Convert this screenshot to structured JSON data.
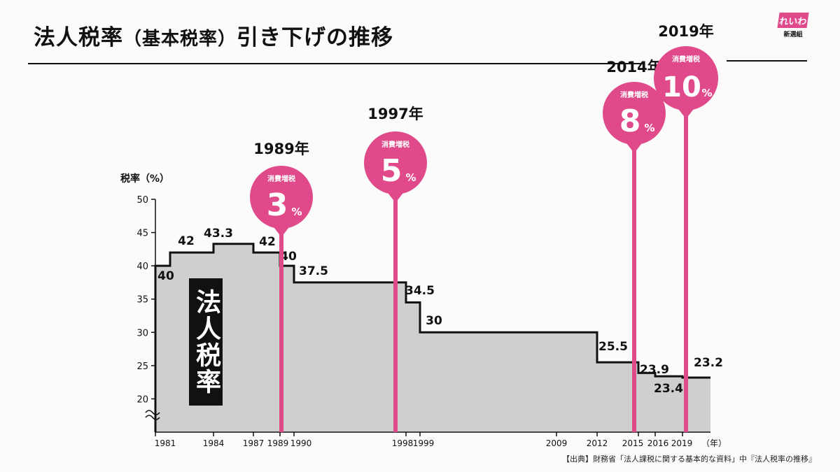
{
  "title": {
    "main": "法人税率",
    "paren": "（基本税率）",
    "tail": "引き下げの推移"
  },
  "logo": {
    "mark": "れいわ",
    "sub": "新選組"
  },
  "source_note": "【出典】財務省「法人課税に関する基本的な資料」中『法人税率の推移』",
  "chart_data": {
    "type": "area",
    "step": true,
    "title": "法人税率（基本税率）引き下げの推移",
    "ylabel": "税率（%）",
    "xlabel": "（年）",
    "ylim": [
      15,
      50
    ],
    "y_ticks": [
      "20",
      "25",
      "30",
      "35",
      "40",
      "45",
      "50"
    ],
    "axis_break": true,
    "x_tick_labels": [
      "1981",
      "1984",
      "1987",
      "1989",
      "1990",
      "1998",
      "1999",
      "2009",
      "2012",
      "2015",
      "2016",
      "2019"
    ],
    "label_0": "（年）",
    "area_label": "法人税",
    "area_label_2": "率",
    "fill_color": "#cfcfcf",
    "accent_color": "#e04a8b",
    "series": [
      {
        "name": "法人税率",
        "points": [
          {
            "x": 1981,
            "y": 40,
            "label": "40"
          },
          {
            "x": 1981.5,
            "y": 42,
            "label": "42"
          },
          {
            "x": 1984,
            "y": 43.3,
            "label": "43.3"
          },
          {
            "x": 1987,
            "y": 42,
            "label": "42"
          },
          {
            "x": 1989,
            "y": 40,
            "label": "40"
          },
          {
            "x": 1990,
            "y": 37.5,
            "label": "37.5"
          },
          {
            "x": 1998,
            "y": 34.5,
            "label": "34.5"
          },
          {
            "x": 1999,
            "y": 30,
            "label": "30"
          },
          {
            "x": 2012,
            "y": 25.5,
            "label": "25.5"
          },
          {
            "x": 2015,
            "y": 23.9,
            "label": "23.9"
          },
          {
            "x": 2016,
            "y": 23.4,
            "label": "23.4"
          },
          {
            "x": 2018,
            "y": 23.2,
            "label": "23.2"
          }
        ],
        "end_x": 2021
      }
    ],
    "consumption_tax_events": [
      {
        "x": 1989,
        "year_label": "1989年",
        "caption": "消費増税",
        "rate": "3",
        "unit": "%"
      },
      {
        "x": 1997.5,
        "year_label": "1997年",
        "caption": "消費増税",
        "rate": "5",
        "unit": "%"
      },
      {
        "x": 2014.5,
        "year_label": "2014年",
        "caption": "消費増税",
        "rate": "8",
        "unit": "%"
      },
      {
        "x": 2019.5,
        "year_label": "2019年",
        "caption": "消費増税",
        "rate": "10",
        "unit": "%"
      }
    ]
  }
}
